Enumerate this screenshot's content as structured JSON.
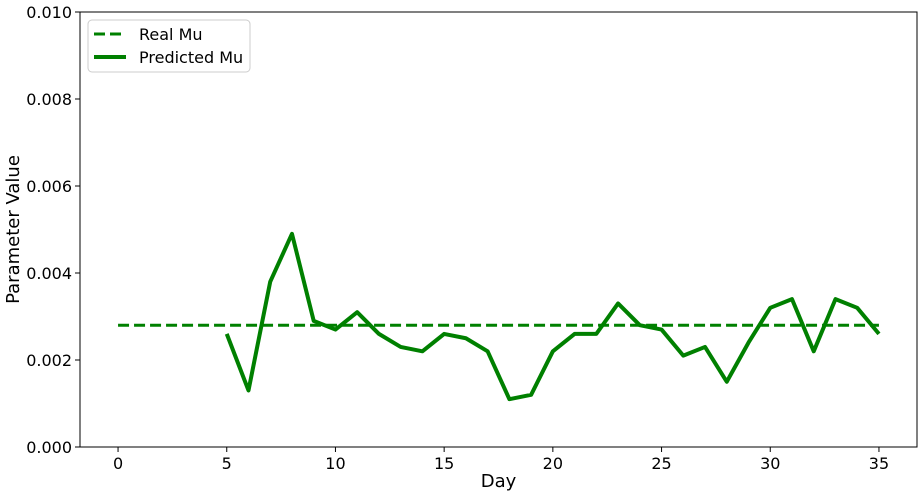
{
  "chart_data": {
    "type": "line",
    "title": "",
    "xlabel": "Day",
    "ylabel": "Parameter Value",
    "xlim": [
      -1.75,
      36.75
    ],
    "ylim": [
      0,
      0.01
    ],
    "x_ticks": [
      0,
      5,
      10,
      15,
      20,
      25,
      30,
      35
    ],
    "y_ticks": [
      0,
      0.002,
      0.004,
      0.006,
      0.008,
      0.01
    ],
    "y_tick_labels": [
      "0.000",
      "0.002",
      "0.004",
      "0.006",
      "0.008",
      "0.010"
    ],
    "grid": false,
    "legend_position": "top-left",
    "series": [
      {
        "name": "Real Mu",
        "style": "dashed",
        "color": "#008000",
        "x": [
          0,
          35
        ],
        "values": [
          0.0028,
          0.0028
        ]
      },
      {
        "name": "Predicted Mu",
        "style": "solid",
        "color": "#008000",
        "x": [
          5,
          6,
          7,
          8,
          9,
          10,
          11,
          12,
          13,
          14,
          15,
          16,
          17,
          18,
          19,
          20,
          21,
          22,
          23,
          24,
          25,
          26,
          27,
          28,
          29,
          30,
          31,
          32,
          33,
          34,
          35
        ],
        "values": [
          0.0026,
          0.0013,
          0.0038,
          0.0049,
          0.0029,
          0.0027,
          0.0031,
          0.0026,
          0.0023,
          0.0022,
          0.0026,
          0.0025,
          0.0022,
          0.0011,
          0.0012,
          0.0022,
          0.0026,
          0.0026,
          0.0033,
          0.0028,
          0.0027,
          0.0021,
          0.0023,
          0.0015,
          0.0024,
          0.0032,
          0.0034,
          0.0022,
          0.0034,
          0.0032,
          0.0026
        ]
      }
    ]
  }
}
